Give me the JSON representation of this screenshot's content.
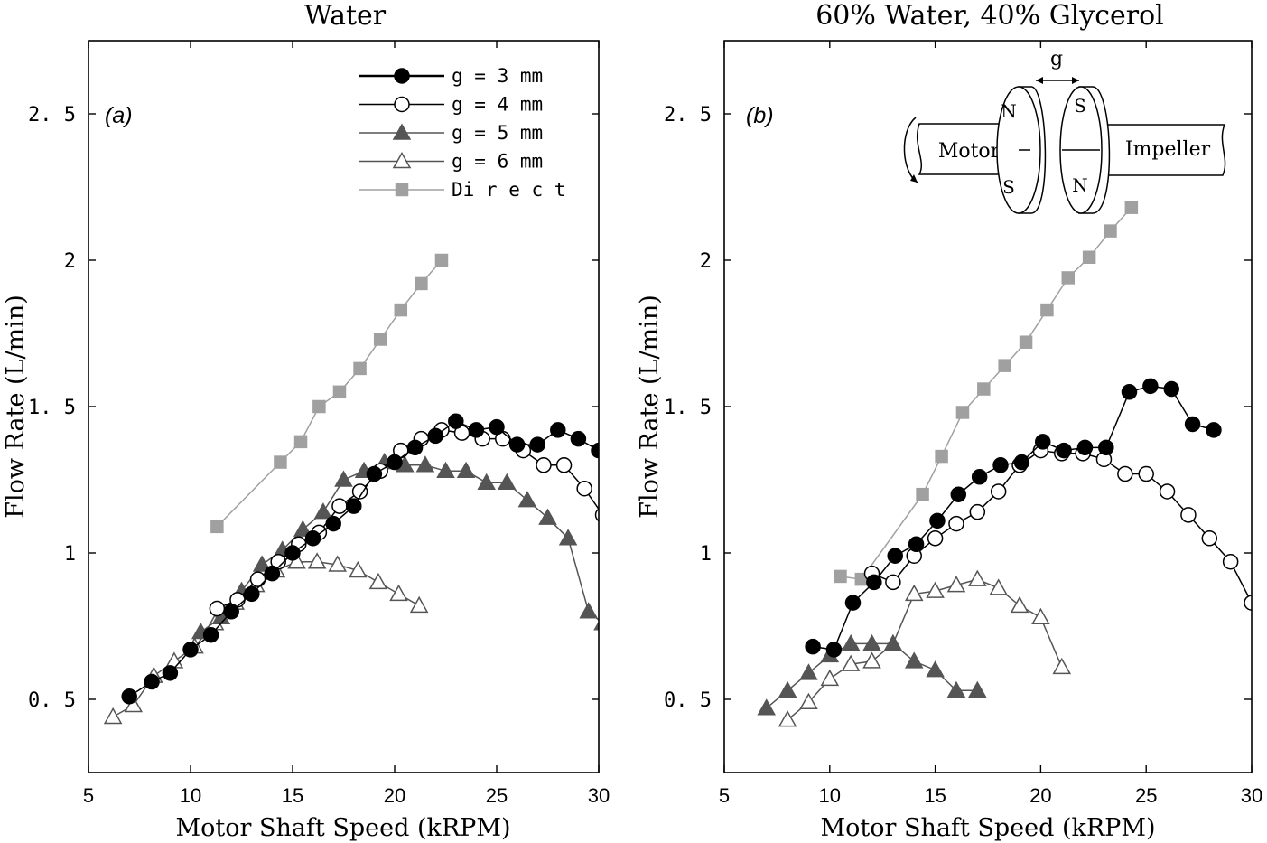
{
  "chart_data": [
    {
      "type": "line",
      "panel_label": "(a)",
      "title": "Water",
      "xlabel": "Motor Shaft Speed (kRPM)",
      "ylabel": "Flow Rate (L/min)",
      "xlim": [
        5,
        30
      ],
      "ylim": [
        0.25,
        2.75
      ],
      "xticks": [
        5,
        10,
        15,
        20,
        25,
        30
      ],
      "xtick_labels": [
        "5",
        "10",
        "15",
        "20",
        "25",
        "30"
      ],
      "yticks": [
        0.5,
        1,
        1.5,
        2,
        2.5
      ],
      "ytick_labels": [
        "0. 5",
        "1",
        "1. 5",
        "2",
        "2. 5"
      ],
      "legend": {
        "position": "top-right",
        "entries": [
          "g  =  3  mm",
          "g  =  4  mm",
          "g  =  5  mm",
          "g  =  6  mm",
          "Di r e c t"
        ]
      },
      "series": [
        {
          "name": "g = 3 mm",
          "marker": "circle-filled",
          "color": "#000000",
          "x": [
            7,
            8.1,
            9,
            10,
            11,
            12,
            13,
            14,
            15,
            16,
            17,
            18,
            19,
            20,
            21,
            22,
            23,
            24,
            25,
            26,
            27,
            28,
            29,
            30
          ],
          "y": [
            0.51,
            0.56,
            0.59,
            0.67,
            0.72,
            0.8,
            0.86,
            0.93,
            1.0,
            1.05,
            1.1,
            1.16,
            1.27,
            1.31,
            1.36,
            1.4,
            1.45,
            1.42,
            1.43,
            1.37,
            1.37,
            1.42,
            1.39,
            1.35
          ]
        },
        {
          "name": "g = 4 mm",
          "marker": "circle-open",
          "color": "#000000",
          "x": [
            11.3,
            12.3,
            13.3,
            14.3,
            15.3,
            16.3,
            17.3,
            18.3,
            19.3,
            20.3,
            21.3,
            22.3,
            23.3,
            24.3,
            25.3,
            26.3,
            27.3,
            28.3,
            29.3,
            30.2
          ],
          "y": [
            0.81,
            0.84,
            0.91,
            0.97,
            1.03,
            1.07,
            1.16,
            1.21,
            1.28,
            1.35,
            1.39,
            1.42,
            1.41,
            1.39,
            1.39,
            1.35,
            1.3,
            1.3,
            1.22,
            1.13
          ]
        },
        {
          "name": "g = 5 mm",
          "marker": "triangle-filled",
          "color": "#555555",
          "x": [
            10.5,
            11.5,
            12.5,
            13.5,
            14.5,
            15.5,
            16.5,
            17.5,
            18.5,
            19.5,
            20.5,
            21.5,
            22.5,
            23.5,
            24.5,
            25.5,
            26.5,
            27.5,
            28.5,
            29.5,
            30.2
          ],
          "y": [
            0.73,
            0.78,
            0.87,
            0.96,
            1.01,
            1.08,
            1.14,
            1.25,
            1.28,
            1.31,
            1.3,
            1.3,
            1.28,
            1.28,
            1.24,
            1.24,
            1.18,
            1.12,
            1.05,
            0.8,
            0.76
          ]
        },
        {
          "name": "g = 6 mm",
          "marker": "triangle-open",
          "color": "#555555",
          "x": [
            6.2,
            7.2,
            8.2,
            9.2,
            10.2,
            11.2,
            12.2,
            13.2,
            14.2,
            15.2,
            16.2,
            17.2,
            18.2,
            19.2,
            20.2,
            21.2
          ],
          "y": [
            0.44,
            0.48,
            0.58,
            0.63,
            0.68,
            0.76,
            0.83,
            0.89,
            0.94,
            0.97,
            0.97,
            0.96,
            0.94,
            0.9,
            0.86,
            0.82
          ]
        },
        {
          "name": "Direct",
          "marker": "square-filled",
          "color": "#a0a0a0",
          "x": [
            11.3,
            14.4,
            15.4,
            16.3,
            17.3,
            18.3,
            19.3,
            20.3,
            21.3,
            22.3
          ],
          "y": [
            1.09,
            1.31,
            1.38,
            1.5,
            1.55,
            1.63,
            1.73,
            1.83,
            1.92,
            2.0
          ]
        }
      ]
    },
    {
      "type": "line",
      "panel_label": "(b)",
      "title": "60% Water, 40% Glycerol",
      "xlabel": "Motor Shaft Speed (kRPM)",
      "ylabel": "Flow Rate (L/min)",
      "xlim": [
        5,
        30
      ],
      "ylim": [
        0.25,
        2.75
      ],
      "xticks": [
        5,
        10,
        15,
        20,
        25,
        30
      ],
      "xtick_labels": [
        "5",
        "10",
        "15",
        "20",
        "25",
        "30"
      ],
      "yticks": [
        0.5,
        1,
        1.5,
        2,
        2.5
      ],
      "ytick_labels": [
        "0. 5",
        "1",
        "1. 5",
        "2",
        "2. 5"
      ],
      "inset": {
        "gap_label": "g",
        "motor_label": "Motor",
        "impeller_label": "Impeller",
        "left_disk_poles": [
          "N",
          "S"
        ],
        "right_disk_poles": [
          "S",
          "N"
        ]
      },
      "series": [
        {
          "name": "g = 3 mm",
          "marker": "circle-filled",
          "color": "#000000",
          "x": [
            9.2,
            10.2,
            11.1,
            12.1,
            13.1,
            14.1,
            15.1,
            16.1,
            17.1,
            18.1,
            19.1,
            20.1,
            21.1,
            22.1,
            23.1,
            24.2,
            25.2,
            26.2,
            27.2,
            28.2
          ],
          "y": [
            0.68,
            0.67,
            0.83,
            0.9,
            0.99,
            1.03,
            1.11,
            1.2,
            1.26,
            1.3,
            1.31,
            1.38,
            1.35,
            1.36,
            1.36,
            1.55,
            1.57,
            1.56,
            1.44,
            1.42
          ]
        },
        {
          "name": "g = 4 mm",
          "marker": "circle-open",
          "color": "#000000",
          "x": [
            12,
            13,
            14,
            15,
            16,
            17,
            18,
            19,
            20,
            21,
            22,
            23,
            24,
            25,
            26,
            27,
            28,
            29,
            30
          ],
          "y": [
            0.93,
            0.9,
            0.99,
            1.05,
            1.1,
            1.14,
            1.21,
            1.3,
            1.35,
            1.34,
            1.34,
            1.32,
            1.27,
            1.27,
            1.21,
            1.13,
            1.05,
            0.97,
            0.83
          ]
        },
        {
          "name": "g = 5 mm",
          "marker": "triangle-filled",
          "color": "#555555",
          "x": [
            7,
            8,
            9,
            10,
            11,
            12,
            13,
            14,
            15,
            16,
            17
          ],
          "y": [
            0.47,
            0.53,
            0.59,
            0.65,
            0.69,
            0.69,
            0.69,
            0.63,
            0.6,
            0.53,
            0.53
          ]
        },
        {
          "name": "g = 6 mm",
          "marker": "triangle-open",
          "color": "#555555",
          "x": [
            8,
            9,
            10,
            11,
            12,
            13,
            14,
            15,
            16,
            17,
            18,
            19,
            20,
            21
          ],
          "y": [
            0.43,
            0.49,
            0.57,
            0.62,
            0.63,
            0.69,
            0.86,
            0.87,
            0.89,
            0.91,
            0.88,
            0.82,
            0.78,
            0.61
          ]
        },
        {
          "name": "Direct",
          "marker": "square-filled",
          "color": "#a0a0a0",
          "x": [
            10.5,
            11.5,
            14.4,
            15.3,
            16.3,
            17.3,
            18.3,
            19.3,
            20.3,
            21.3,
            22.3,
            23.3,
            24.3
          ],
          "y": [
            0.92,
            0.91,
            1.2,
            1.33,
            1.48,
            1.56,
            1.64,
            1.72,
            1.83,
            1.94,
            2.01,
            2.1,
            2.18
          ]
        }
      ]
    }
  ]
}
